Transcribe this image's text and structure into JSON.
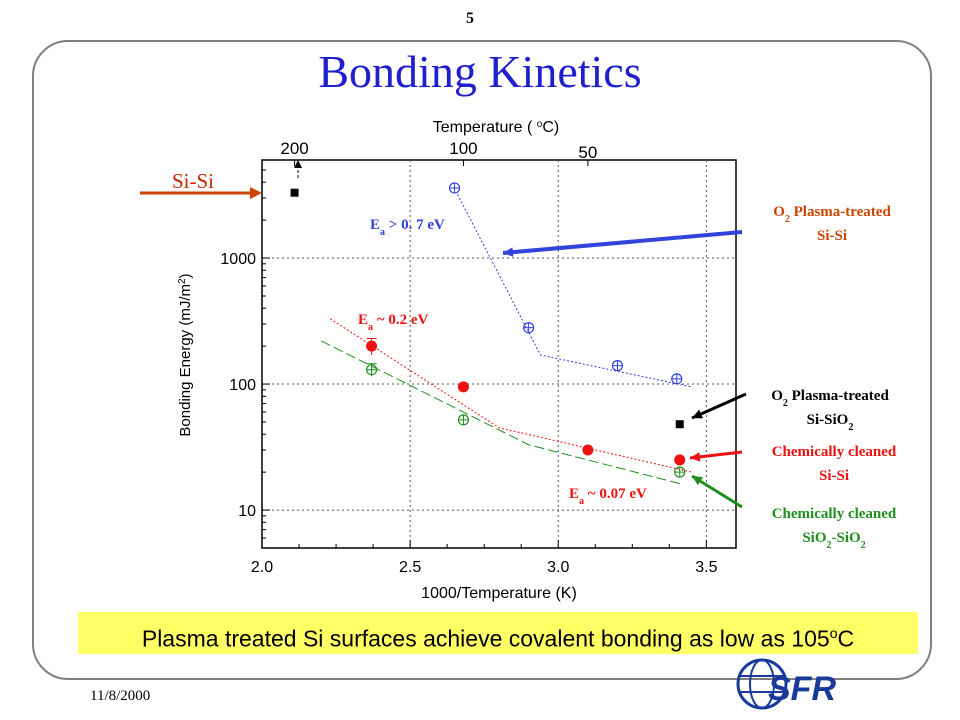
{
  "page_number": "5",
  "title": "Bonding Kinetics",
  "date": "11/8/2000",
  "banner": {
    "text": "Plasma treated Si surfaces achieve covalent bonding as low as 105",
    "sup": "o",
    "unit": "C"
  },
  "logo": {
    "text": "SFR",
    "icon": "globe-logo-icon"
  },
  "colors": {
    "blue": "#3040e0",
    "red": "#ee1111",
    "green": "#1f8f1f",
    "black": "#000000",
    "orange": "#cc4400",
    "title": "#1f1fd0",
    "banner": "#ffff66"
  },
  "chart_data": {
    "type": "scatter",
    "x_axis": {
      "label": "1000/Temperature (K)",
      "range": [
        2.0,
        3.6
      ],
      "ticks": [
        2.0,
        2.5,
        3.0,
        3.5
      ],
      "tick_labels": [
        "2.0",
        "2.5",
        "3.0",
        "3.5"
      ]
    },
    "y_axis": {
      "label": "Bonding Energy (mJ/m",
      "label_sup": "2",
      "label_end": ")",
      "scale": "log",
      "range": [
        5,
        6000
      ],
      "ticks": [
        10,
        100,
        1000
      ],
      "tick_labels": [
        "10",
        "100",
        "1000"
      ]
    },
    "top_axis": {
      "label": "Temperature ( ",
      "label_sup": "o",
      "label_end": "C)",
      "ticks_1000_over_K": [
        2.11,
        2.68,
        3.1
      ],
      "tick_labels": [
        "200",
        "100",
        "50"
      ]
    },
    "grid": true,
    "series": [
      {
        "name": "O2 Plasma-treated Si-Si",
        "color": "blue",
        "marker": "circle-plus",
        "points": [
          [
            2.65,
            3600
          ],
          [
            2.9,
            280
          ],
          [
            3.2,
            140
          ],
          [
            3.4,
            110
          ]
        ],
        "fit": [
          [
            2.66,
            3200
          ],
          [
            2.94,
            170
          ],
          [
            3.45,
            95
          ]
        ]
      },
      {
        "name": "O2 Plasma-treated Si-SiO2",
        "color": "black",
        "marker": "square",
        "points": [
          [
            2.11,
            3300
          ],
          [
            3.41,
            48
          ]
        ]
      },
      {
        "name": "Chemically cleaned Si-Si",
        "color": "red",
        "marker": "filled-circle",
        "points": [
          [
            2.37,
            200
          ],
          [
            2.68,
            95
          ],
          [
            3.1,
            30
          ],
          [
            3.41,
            25
          ]
        ],
        "fit": [
          [
            2.23,
            330
          ],
          [
            2.8,
            45
          ],
          [
            3.45,
            20
          ]
        ]
      },
      {
        "name": "Chemically cleaned SiO2-SiO2",
        "color": "green",
        "marker": "circle-plus",
        "points": [
          [
            2.37,
            130
          ],
          [
            2.68,
            52
          ],
          [
            3.41,
            20
          ]
        ],
        "fit": [
          [
            2.2,
            220
          ],
          [
            2.9,
            33
          ],
          [
            3.42,
            16
          ]
        ]
      }
    ],
    "annotations": [
      {
        "id": "ea-blue",
        "main": "E",
        "sub": "a",
        "rest": " > 0. 7 eV",
        "color": "blue"
      },
      {
        "id": "ea-red",
        "main": "E",
        "sub": "a",
        "rest": " ~ 0.2 eV",
        "color": "red"
      },
      {
        "id": "ea-red2",
        "main": "E",
        "sub": "a",
        "rest": " ~ 0.07 eV",
        "color": "red"
      },
      {
        "id": "si-si",
        "text": "Si-Si",
        "color": "red"
      }
    ],
    "legend_labels": [
      {
        "id": "blue",
        "line1": "O",
        "line1_sub": "2",
        "line1_rest": " Plasma-treated",
        "line2": "Si-Si",
        "color": "orange"
      },
      {
        "id": "black",
        "line1": "O",
        "line1_sub": "2",
        "line1_rest": " Plasma-treated",
        "line2": "Si-SiO",
        "line2_sub": "2",
        "color": "black"
      },
      {
        "id": "red",
        "line1": "Chemically cleaned",
        "line2": "Si-Si",
        "color": "red"
      },
      {
        "id": "green",
        "line1": "Chemically cleaned",
        "line2": "SiO",
        "line2_sub": "2",
        "line2_rest": "-SiO",
        "line2_sub2": "2",
        "color": "green"
      }
    ]
  }
}
